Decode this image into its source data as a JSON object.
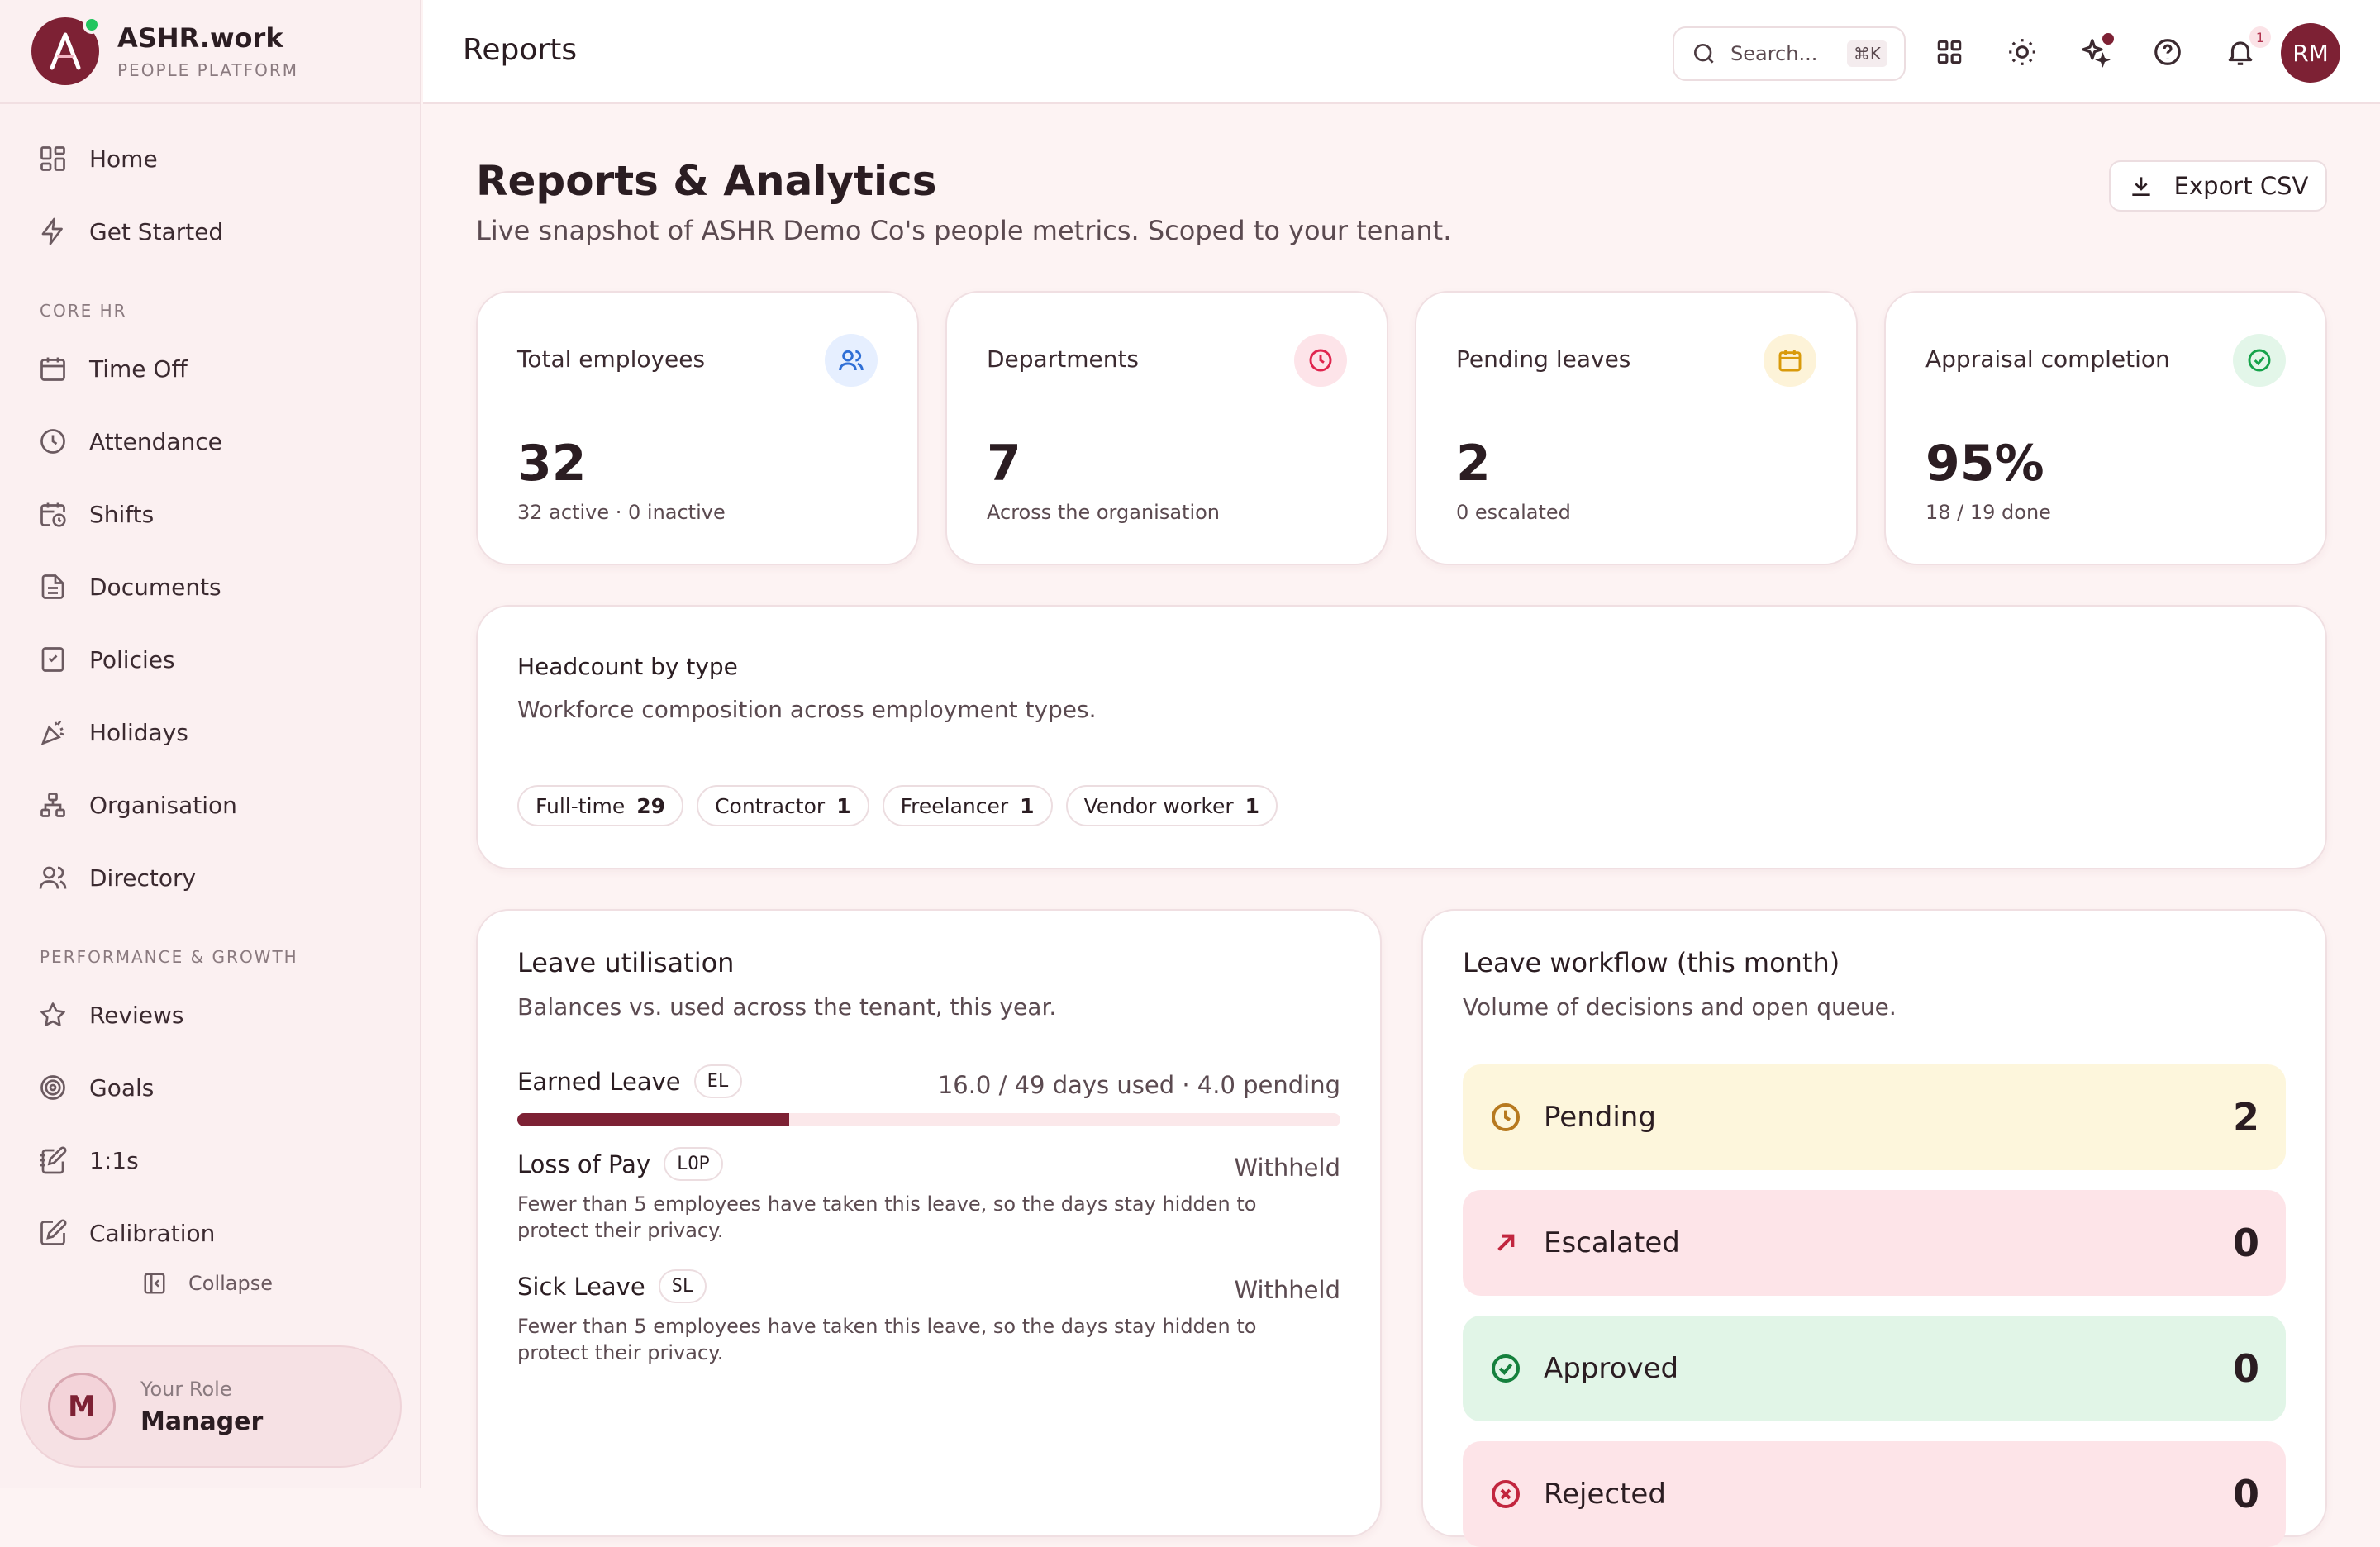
{
  "brand": {
    "name": "ASHR.work",
    "subtitle": "PEOPLE PLATFORM"
  },
  "sidebar": {
    "top_items": [
      {
        "label": "Home",
        "icon": "grid-icon"
      },
      {
        "label": "Get Started",
        "icon": "lightning-icon"
      }
    ],
    "sections": [
      {
        "title": "CORE HR",
        "items": [
          {
            "label": "Time Off",
            "icon": "calendar-icon"
          },
          {
            "label": "Attendance",
            "icon": "clock-icon"
          },
          {
            "label": "Shifts",
            "icon": "calendar-clock-icon"
          },
          {
            "label": "Documents",
            "icon": "document-icon"
          },
          {
            "label": "Policies",
            "icon": "policy-book-icon"
          },
          {
            "label": "Holidays",
            "icon": "party-popper-icon"
          },
          {
            "label": "Organisation",
            "icon": "org-chart-icon"
          },
          {
            "label": "Directory",
            "icon": "users-icon"
          }
        ]
      },
      {
        "title": "PERFORMANCE & GROWTH",
        "items": [
          {
            "label": "Reviews",
            "icon": "star-icon"
          },
          {
            "label": "Goals",
            "icon": "target-icon"
          },
          {
            "label": "1:1s",
            "icon": "notebook-pen-icon"
          },
          {
            "label": "Calibration",
            "icon": "square-pen-icon"
          }
        ]
      }
    ],
    "collapse_label": "Collapse",
    "role": {
      "initial": "M",
      "label": "Your Role",
      "value": "Manager"
    }
  },
  "topbar": {
    "title": "Reports",
    "search_placeholder": "Search...",
    "search_shortcut": "⌘K",
    "notification_count": "1",
    "avatar_initials": "RM"
  },
  "page": {
    "title": "Reports & Analytics",
    "subtitle": "Live snapshot of ASHR Demo Co's people metrics. Scoped to your tenant.",
    "export_label": "Export CSV"
  },
  "stats": [
    {
      "label": "Total employees",
      "value": "32",
      "sub": "32 active · 0 inactive",
      "icon": "users-icon",
      "color": "#2f6fd6",
      "bg": "#e6efff"
    },
    {
      "label": "Departments",
      "value": "7",
      "sub": "Across the organisation",
      "icon": "clock-icon",
      "color": "#e0264f",
      "bg": "#fde4e9"
    },
    {
      "label": "Pending leaves",
      "value": "2",
      "sub": "0 escalated",
      "icon": "calendar-icon",
      "color": "#d99a0b",
      "bg": "#fdf3d8"
    },
    {
      "label": "Appraisal completion",
      "value": "95%",
      "sub": "18 / 19 done",
      "icon": "check-circle-icon",
      "color": "#16a34a",
      "bg": "#e3f6e9"
    }
  ],
  "headcount": {
    "title": "Headcount by type",
    "description": "Workforce composition across employment types.",
    "types": [
      {
        "label": "Full-time",
        "count": "29"
      },
      {
        "label": "Contractor",
        "count": "1"
      },
      {
        "label": "Freelancer",
        "count": "1"
      },
      {
        "label": "Vendor worker",
        "count": "1"
      }
    ]
  },
  "leave_utilisation": {
    "title": "Leave utilisation",
    "description": "Balances vs. used across the tenant, this year.",
    "rows": [
      {
        "name": "Earned Leave",
        "code": "EL",
        "status": "16.0 / 49 days used · 4.0 pending",
        "used_fraction": 0.33,
        "note": ""
      },
      {
        "name": "Loss of Pay",
        "code": "LOP",
        "status": "Withheld",
        "note": "Fewer than 5 employees have taken this leave, so the days stay hidden to protect their privacy."
      },
      {
        "name": "Sick Leave",
        "code": "SL",
        "status": "Withheld",
        "note": "Fewer than 5 employees have taken this leave, so the days stay hidden to protect their privacy."
      }
    ]
  },
  "leave_workflow": {
    "title": "Leave workflow (this month)",
    "description": "Volume of decisions and open queue.",
    "items": [
      {
        "label": "Pending",
        "count": "2",
        "icon": "clock-icon",
        "color": "#b7791f",
        "bg": "#fdf6dc"
      },
      {
        "label": "Escalated",
        "count": "0",
        "icon": "arrow-up-right-icon",
        "color": "#c2263f",
        "bg": "#fde4e8"
      },
      {
        "label": "Approved",
        "count": "0",
        "icon": "check-circle-icon",
        "color": "#15803d",
        "bg": "#e1f5e7"
      },
      {
        "label": "Rejected",
        "count": "0",
        "icon": "x-circle-icon",
        "color": "#c2263f",
        "bg": "#fde4e8"
      }
    ]
  }
}
